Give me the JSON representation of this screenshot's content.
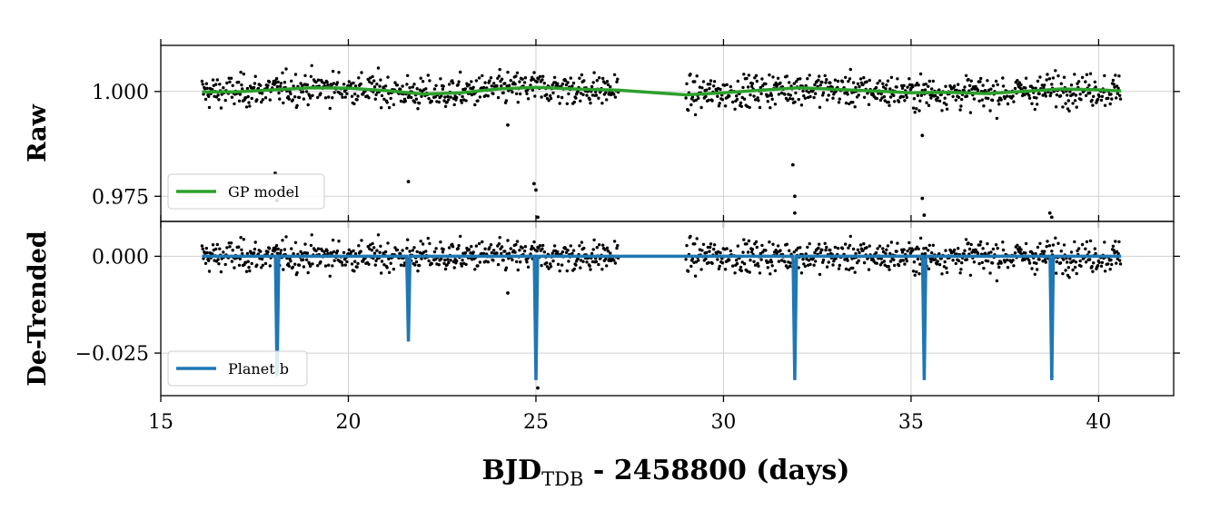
{
  "chart_data": [
    {
      "type": "scatter",
      "panel": "top",
      "ylabel": "Raw",
      "xlim": [
        15,
        42
      ],
      "ylim": [
        0.969,
        1.011
      ],
      "xticks": [
        15,
        20,
        25,
        30,
        35,
        40
      ],
      "yticks": [
        0.975,
        1.0
      ],
      "ytick_labels": [
        "0.975",
        "1.000"
      ],
      "grid": true,
      "legend_position": "lower-left",
      "series": [
        {
          "name": "GP model",
          "kind": "line",
          "color": "#2ca02c",
          "x": [
            16.1,
            17.0,
            18.0,
            19.0,
            20.0,
            21.0,
            22.0,
            23.0,
            24.0,
            25.0,
            26.0,
            27.2,
            29.0,
            30.0,
            31.0,
            32.0,
            33.0,
            34.0,
            35.0,
            36.0,
            37.0,
            38.0,
            39.0,
            40.0,
            40.6
          ],
          "y": [
            0.9999,
            0.9999,
            1.0004,
            1.0009,
            1.0008,
            1.0002,
            0.9994,
            0.9997,
            1.0006,
            1.001,
            1.0006,
            1.0003,
            0.9992,
            0.9997,
            1.0003,
            1.0009,
            1.0005,
            1.0001,
            0.9997,
            0.9998,
            0.9995,
            1.0,
            1.0006,
            1.0004,
            1.0001
          ]
        },
        {
          "name": "",
          "kind": "scatter",
          "color": "#000000",
          "outliers_x": [
            18.05,
            18.1,
            21.6,
            24.95,
            25.0,
            25.05,
            31.85,
            31.9,
            31.9,
            35.3,
            35.35,
            38.7,
            38.75,
            24.25,
            35.3
          ],
          "outliers_y": [
            0.9805,
            0.974,
            0.9785,
            0.978,
            0.9765,
            0.97,
            0.9825,
            0.975,
            0.971,
            0.9745,
            0.9705,
            0.971,
            0.97,
            0.992,
            0.9895
          ]
        }
      ]
    },
    {
      "type": "scatter",
      "panel": "bottom",
      "ylabel": "De-Trended",
      "xlabel": "BJD",
      "xlabel_sub": "TDB",
      "xlabel_rest": " - 2458800 (days)",
      "xlim": [
        15,
        42
      ],
      "ylim": [
        -0.036,
        0.009
      ],
      "xticks": [
        15,
        20,
        25,
        30,
        35,
        40
      ],
      "xtick_labels": [
        "15",
        "20",
        "25",
        "30",
        "35",
        "40"
      ],
      "yticks": [
        -0.025,
        0.0
      ],
      "ytick_labels": [
        "−0.025",
        "0.000"
      ],
      "grid": true,
      "legend_position": "lower-left",
      "series": [
        {
          "name": "Planet b",
          "kind": "transit-model",
          "color": "#1f77b4",
          "baseline": 0.0,
          "transits": [
            {
              "t0": 18.1,
              "depth": -0.031
            },
            {
              "t0": 21.6,
              "depth": -0.022
            },
            {
              "t0": 25.0,
              "depth": -0.032
            },
            {
              "t0": 31.9,
              "depth": -0.032
            },
            {
              "t0": 35.35,
              "depth": -0.032
            },
            {
              "t0": 38.75,
              "depth": -0.032
            }
          ]
        },
        {
          "name": "",
          "kind": "scatter",
          "color": "#000000",
          "outliers_x": [
            24.25,
            25.05,
            38.75
          ],
          "outliers_y": [
            -0.0095,
            -0.034,
            -0.031
          ]
        }
      ]
    }
  ]
}
